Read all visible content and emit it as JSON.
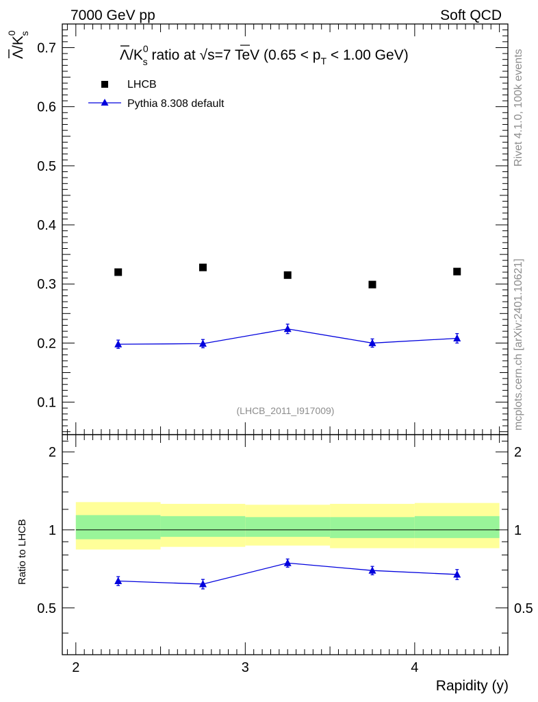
{
  "header": {
    "left": "7000 GeV pp",
    "right": "Soft QCD"
  },
  "side": {
    "rivet": "Rivet 4.1.0,  100k events",
    "mcplots": "mcplots.cern.ch [arXiv:2401.10621]"
  },
  "watermark": "(LHCB_2011_I917009)",
  "chart_data": [
    {
      "panel": "main",
      "type": "scatter",
      "title": "Λ̄/K_s^0 ratio at √s=7 TeV (0.65 < p_T < 1.00 GeV)",
      "title_parts": {
        "prefix": "/K",
        "sup": "0",
        "sub": "s",
        "mid": " ratio at ",
        "sqrt": "√s",
        "mid2": "=7 TeV (0.65 < p",
        "pt_sub": "T",
        "suffix": " < 1.00 GeV)"
      },
      "ylabel": "Λ̄/K_s^0",
      "ylabel_parts": {
        "bar": "Λ",
        "k": "/K",
        "sup": "0",
        "sub": "s"
      },
      "xlim": [
        1.92,
        4.55
      ],
      "ylim": [
        0.045,
        0.74
      ],
      "y_ticks": [
        0.1,
        0.2,
        0.3,
        0.4,
        0.5,
        0.6,
        0.7
      ],
      "y_tick_labels": [
        "0.1",
        "0.2",
        "0.3",
        "0.4",
        "0.5",
        "0.6",
        "0.7"
      ],
      "legend_position": "top-left",
      "series": [
        {
          "name": "LHCB",
          "marker": "square",
          "color": "#000000",
          "x": [
            2.25,
            2.75,
            3.25,
            3.75,
            4.25
          ],
          "values": [
            0.32,
            0.328,
            0.315,
            0.299,
            0.321
          ]
        },
        {
          "name": "Pythia 8.308 default",
          "marker": "triangle",
          "color": "#0000dd",
          "x": [
            2.25,
            2.75,
            3.25,
            3.75,
            4.25
          ],
          "values": [
            0.198,
            0.199,
            0.224,
            0.2,
            0.208
          ],
          "errors": [
            0.007,
            0.007,
            0.008,
            0.007,
            0.008
          ]
        }
      ]
    },
    {
      "panel": "ratio",
      "type": "line",
      "ylabel": "Ratio to LHCB",
      "xlabel": "Rapidity (y)",
      "xlim": [
        1.92,
        4.55
      ],
      "ylim": [
        0.33,
        2.33
      ],
      "y_ticks": [
        0.5,
        1,
        2
      ],
      "y_tick_labels": [
        "0.5",
        "1",
        "2"
      ],
      "x_ticks": [
        2,
        3,
        4
      ],
      "x_tick_labels": [
        "2",
        "3",
        "4"
      ],
      "bins": [
        [
          2.0,
          2.5
        ],
        [
          2.5,
          3.0
        ],
        [
          3.0,
          3.5
        ],
        [
          3.5,
          4.0
        ],
        [
          4.0,
          4.5
        ]
      ],
      "band_inner": [
        [
          0.92,
          1.14
        ],
        [
          0.94,
          1.13
        ],
        [
          0.94,
          1.12
        ],
        [
          0.93,
          1.12
        ],
        [
          0.93,
          1.13
        ]
      ],
      "band_outer": [
        [
          0.84,
          1.28
        ],
        [
          0.86,
          1.26
        ],
        [
          0.87,
          1.25
        ],
        [
          0.85,
          1.26
        ],
        [
          0.85,
          1.27
        ]
      ],
      "band_inner_color": "#99f599",
      "band_outer_color": "#ffff99",
      "reference_line": 1,
      "series": [
        {
          "name": "Pythia 8.308 default",
          "color": "#0000dd",
          "x": [
            2.25,
            2.75,
            3.25,
            3.75,
            4.25
          ],
          "values": [
            0.635,
            0.618,
            0.745,
            0.697,
            0.673
          ],
          "errors": [
            0.025,
            0.026,
            0.027,
            0.026,
            0.03
          ]
        }
      ]
    }
  ]
}
